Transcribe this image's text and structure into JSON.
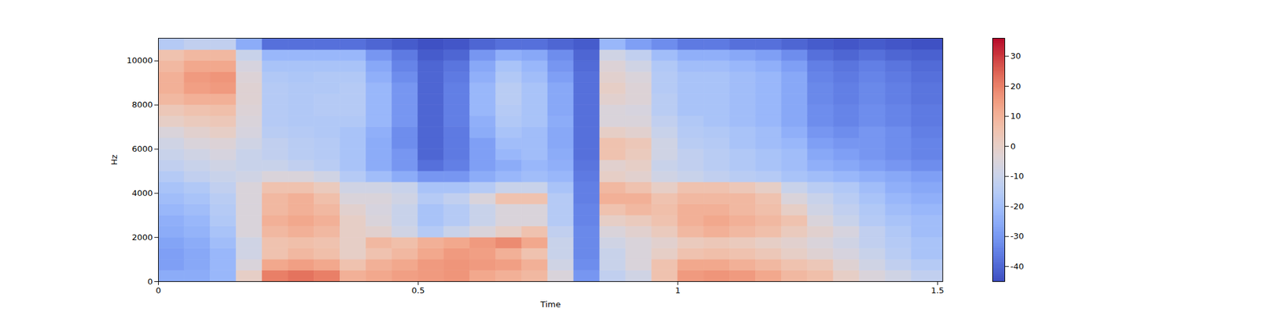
{
  "chart_data": {
    "type": "heatmap",
    "x_label": "Time",
    "y_label": "Hz",
    "xlim": [
      0,
      1.51
    ],
    "xticks": [
      0,
      0.5,
      1,
      1.5
    ],
    "ylim": [
      0,
      11025
    ],
    "yticks": [
      0,
      2000,
      4000,
      6000,
      8000,
      10000
    ],
    "x_bins": [
      0,
      0.05,
      0.1,
      0.15,
      0.2,
      0.25,
      0.3,
      0.35,
      0.4,
      0.45,
      0.5,
      0.55,
      0.6,
      0.65,
      0.7,
      0.75,
      0.8,
      0.85,
      0.9,
      0.95,
      1.0,
      1.05,
      1.1,
      1.15,
      1.2,
      1.25,
      1.3,
      1.35,
      1.4,
      1.45,
      1.51
    ],
    "y_bins": [
      0,
      500,
      1000,
      1500,
      2000,
      2500,
      3000,
      3500,
      4000,
      4500,
      5000,
      5500,
      6000,
      6500,
      7000,
      7500,
      8000,
      8500,
      9000,
      9500,
      10000,
      10500,
      11025
    ],
    "cells": [
      [
        -25,
        -25,
        -22,
        0,
        20,
        22,
        20,
        10,
        12,
        14,
        15,
        16,
        12,
        10,
        8,
        -5,
        -30,
        -12,
        -8,
        5,
        15,
        16,
        15,
        12,
        8,
        6,
        0,
        -5,
        -8,
        -12
      ],
      [
        -28,
        -26,
        -22,
        -5,
        12,
        14,
        12,
        5,
        10,
        12,
        15,
        16,
        15,
        14,
        10,
        -8,
        -32,
        -10,
        -5,
        5,
        12,
        12,
        10,
        8,
        5,
        3,
        -3,
        -8,
        -12,
        -15
      ],
      [
        -28,
        -26,
        -22,
        -8,
        5,
        8,
        6,
        0,
        5,
        8,
        12,
        15,
        14,
        10,
        5,
        -10,
        -33,
        -10,
        -5,
        0,
        5,
        6,
        5,
        3,
        0,
        -3,
        -6,
        -10,
        -14,
        -18
      ],
      [
        -27,
        -25,
        -20,
        -8,
        5,
        6,
        5,
        0,
        8,
        6,
        10,
        12,
        15,
        18,
        12,
        -10,
        -33,
        -8,
        -5,
        -2,
        2,
        3,
        2,
        0,
        -2,
        -5,
        -8,
        -12,
        -15,
        -18
      ],
      [
        -25,
        -23,
        -18,
        -5,
        8,
        10,
        8,
        0,
        -2,
        -8,
        -15,
        -10,
        -5,
        0,
        5,
        -12,
        -33,
        -5,
        -2,
        2,
        8,
        10,
        8,
        6,
        2,
        -2,
        -6,
        -12,
        -16,
        -20
      ],
      [
        -24,
        -22,
        -16,
        -5,
        10,
        12,
        10,
        0,
        -5,
        -10,
        -18,
        -15,
        -10,
        -5,
        -5,
        -15,
        -34,
        0,
        2,
        5,
        10,
        12,
        10,
        8,
        5,
        -5,
        -10,
        -15,
        -18,
        -20
      ],
      [
        -22,
        -20,
        -15,
        -5,
        8,
        10,
        8,
        -2,
        -6,
        -10,
        -18,
        -15,
        -10,
        -5,
        -5,
        -15,
        -34,
        5,
        8,
        6,
        10,
        10,
        8,
        6,
        0,
        -8,
        -12,
        -16,
        -20,
        -22
      ],
      [
        -20,
        -18,
        -14,
        -5,
        8,
        10,
        6,
        -5,
        -5,
        -8,
        -15,
        -12,
        -5,
        5,
        5,
        -15,
        -35,
        10,
        10,
        5,
        8,
        8,
        8,
        5,
        -5,
        -10,
        -14,
        -18,
        -22,
        -24
      ],
      [
        -18,
        -16,
        -12,
        -5,
        5,
        5,
        2,
        -8,
        -8,
        -10,
        -18,
        -18,
        -15,
        -10,
        -10,
        -18,
        -35,
        8,
        5,
        0,
        5,
        5,
        3,
        0,
        -10,
        -14,
        -16,
        -20,
        -24,
        -26
      ],
      [
        -15,
        -12,
        -10,
        -8,
        -5,
        -5,
        -8,
        -15,
        -20,
        -25,
        -30,
        -30,
        -25,
        -22,
        -20,
        -22,
        -36,
        0,
        -2,
        -8,
        -10,
        -12,
        -14,
        -15,
        -18,
        -20,
        -22,
        -24,
        -26,
        -28
      ],
      [
        -12,
        -10,
        -8,
        -10,
        -10,
        -12,
        -14,
        -18,
        -25,
        -30,
        -38,
        -35,
        -28,
        -25,
        -22,
        -24,
        -37,
        -2,
        0,
        -10,
        -12,
        -14,
        -16,
        -18,
        -20,
        -24,
        -26,
        -28,
        -30,
        -32
      ],
      [
        -10,
        -8,
        -6,
        -10,
        -12,
        -14,
        -15,
        -18,
        -25,
        -30,
        -40,
        -36,
        -28,
        -22,
        -20,
        -25,
        -38,
        5,
        2,
        -8,
        -12,
        -14,
        -16,
        -18,
        -20,
        -26,
        -28,
        -30,
        -32,
        -34
      ],
      [
        -8,
        -5,
        -4,
        -8,
        -12,
        -14,
        -15,
        -18,
        -25,
        -32,
        -40,
        -36,
        -28,
        -20,
        -20,
        -26,
        -38,
        5,
        3,
        -8,
        -14,
        -15,
        -18,
        -20,
        -22,
        -28,
        -30,
        -30,
        -32,
        -34
      ],
      [
        -5,
        -2,
        0,
        -6,
        -14,
        -15,
        -16,
        -18,
        -24,
        -32,
        -40,
        -36,
        -25,
        -18,
        -20,
        -26,
        -38,
        0,
        -2,
        -10,
        -15,
        -16,
        -18,
        -20,
        -24,
        -30,
        -32,
        -30,
        -32,
        -35
      ],
      [
        0,
        2,
        3,
        -5,
        -15,
        -16,
        -16,
        -16,
        -22,
        -30,
        -40,
        -35,
        -24,
        -16,
        -18,
        -25,
        -38,
        -5,
        -5,
        -12,
        -16,
        -18,
        -20,
        -22,
        -26,
        -32,
        -34,
        -32,
        -34,
        -36
      ],
      [
        3,
        5,
        6,
        -4,
        -15,
        -16,
        -15,
        -15,
        -22,
        -30,
        -40,
        -35,
        -22,
        -15,
        -18,
        -26,
        -38,
        -5,
        -6,
        -14,
        -18,
        -18,
        -20,
        -22,
        -26,
        -32,
        -34,
        -32,
        -34,
        -36
      ],
      [
        8,
        10,
        10,
        -3,
        -15,
        -16,
        -15,
        -15,
        -22,
        -30,
        -40,
        -35,
        -22,
        -14,
        -18,
        -26,
        -38,
        -2,
        -4,
        -14,
        -18,
        -18,
        -20,
        -22,
        -26,
        -33,
        -35,
        -33,
        -35,
        -37
      ],
      [
        10,
        14,
        15,
        -3,
        -15,
        -16,
        -16,
        -15,
        -22,
        -30,
        -40,
        -35,
        -22,
        -14,
        -18,
        -26,
        -38,
        0,
        -4,
        -15,
        -18,
        -18,
        -20,
        -22,
        -26,
        -33,
        -35,
        -33,
        -35,
        -37
      ],
      [
        10,
        15,
        16,
        -4,
        -16,
        -17,
        -16,
        -16,
        -24,
        -32,
        -40,
        -36,
        -24,
        -16,
        -20,
        -28,
        -38,
        -2,
        -5,
        -15,
        -18,
        -18,
        -20,
        -22,
        -26,
        -34,
        -36,
        -34,
        -36,
        -38
      ],
      [
        8,
        12,
        12,
        -6,
        -18,
        -18,
        -18,
        -18,
        -26,
        -34,
        -40,
        -37,
        -26,
        -18,
        -22,
        -30,
        -39,
        -4,
        -8,
        -16,
        -20,
        -20,
        -22,
        -24,
        -28,
        -35,
        -37,
        -35,
        -37,
        -39
      ],
      [
        5,
        8,
        8,
        -10,
        -22,
        -22,
        -22,
        -22,
        -30,
        -36,
        -42,
        -40,
        -30,
        -24,
        -26,
        -32,
        -40,
        -8,
        -12,
        -20,
        -24,
        -24,
        -26,
        -28,
        -32,
        -38,
        -40,
        -38,
        -40,
        -41
      ],
      [
        -15,
        -12,
        -12,
        -25,
        -38,
        -38,
        -38,
        -38,
        -40,
        -42,
        -44,
        -43,
        -40,
        -38,
        -38,
        -40,
        -42,
        -22,
        -28,
        -32,
        -36,
        -36,
        -38,
        -38,
        -40,
        -42,
        -43,
        -42,
        -43,
        -44
      ]
    ],
    "colorbar": {
      "range": [
        -45,
        36
      ],
      "ticks": [
        -40,
        -30,
        -20,
        -10,
        0,
        10,
        20,
        30
      ]
    }
  }
}
